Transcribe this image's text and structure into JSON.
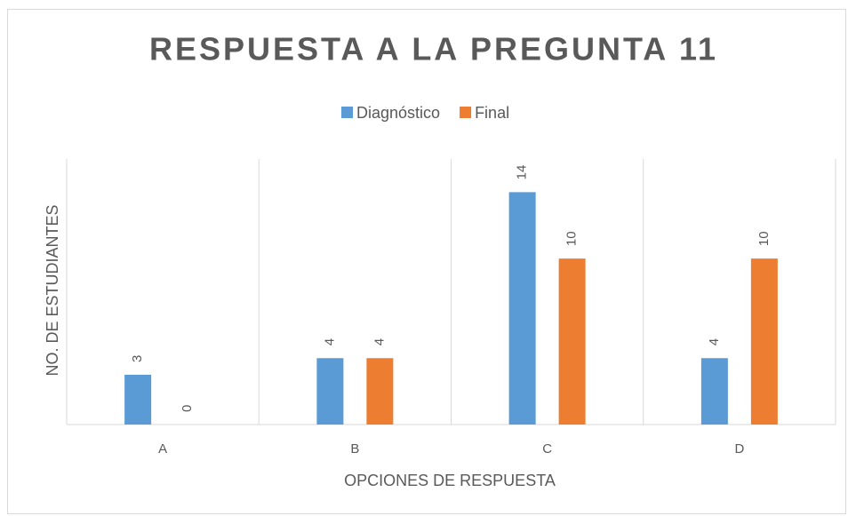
{
  "chart_data": {
    "type": "bar",
    "title": "RESPUESTA A LA PREGUNTA 11",
    "categories": [
      "A",
      "B",
      "C",
      "D"
    ],
    "series": [
      {
        "name": "Diagnóstico",
        "color": "#5b9bd5",
        "values": [
          3,
          4,
          14,
          4
        ]
      },
      {
        "name": "Final",
        "color": "#ed7d31",
        "values": [
          0,
          4,
          10,
          10
        ]
      }
    ],
    "x_label": "OPCIONES DE RESPUESTA",
    "y_label": "NO. DE ESTUDIANTES",
    "ylim": [
      0,
      16
    ],
    "legend": "top"
  }
}
